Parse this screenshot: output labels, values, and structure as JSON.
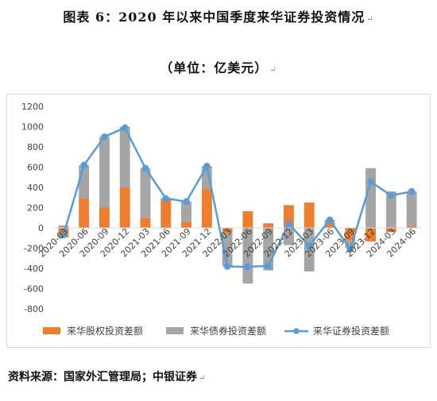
{
  "title": "图表 6：2020 年以来中国季度来华证券投资情况",
  "subtitle": "（单位：亿美元）",
  "source": "资料来源：国家外汇管理局；中银证券",
  "para_mark": "↵",
  "chart_data": {
    "type": "bar",
    "categories": [
      "2020-03",
      "2020-06",
      "2020-09",
      "2020-12",
      "2021-03",
      "2021-06",
      "2021-09",
      "2021-12",
      "2022-03",
      "2022-06",
      "2022-09",
      "2022-12",
      "2023-03",
      "2023-06",
      "2023-09",
      "2023-12",
      "2024-03",
      "2024-06"
    ],
    "x_tick_labels": [
      "2020-03",
      "2020-06",
      "2020-09",
      "2020-12",
      "2021-03",
      "2021-06",
      "2021-09",
      "2021-12",
      "2022-03",
      "2022-06",
      "2022-09",
      "2022-12",
      "2023-03",
      "2023-06",
      "2023-09",
      "2023-12",
      "2024-03",
      "2024-06"
    ],
    "y_ticks": [
      -800,
      -600,
      -400,
      -200,
      0,
      200,
      400,
      600,
      800,
      1000,
      1200
    ],
    "ylim": [
      -800,
      1200
    ],
    "stacked": true,
    "grid": false,
    "legend_position": "bottom",
    "series": [
      {
        "name": "来华股权投资差额",
        "kind": "bar",
        "color": "#ED7D31",
        "values": [
          -95,
          290,
          200,
          400,
          100,
          280,
          60,
          380,
          -50,
          165,
          45,
          225,
          250,
          50,
          -120,
          -135,
          -40,
          20
        ]
      },
      {
        "name": "来华债券投资差额",
        "kind": "bar",
        "color": "#A5A5A5",
        "values": [
          25,
          330,
          700,
          600,
          490,
          15,
          200,
          230,
          -330,
          -550,
          -420,
          -170,
          -430,
          30,
          -80,
          590,
          360,
          340
        ]
      },
      {
        "name": "来华证券投资差额",
        "kind": "line",
        "color": "#5B9BD5",
        "values": [
          -70,
          620,
          900,
          990,
          590,
          290,
          260,
          610,
          -380,
          -385,
          -375,
          40,
          -180,
          80,
          -210,
          455,
          320,
          360
        ]
      }
    ]
  }
}
